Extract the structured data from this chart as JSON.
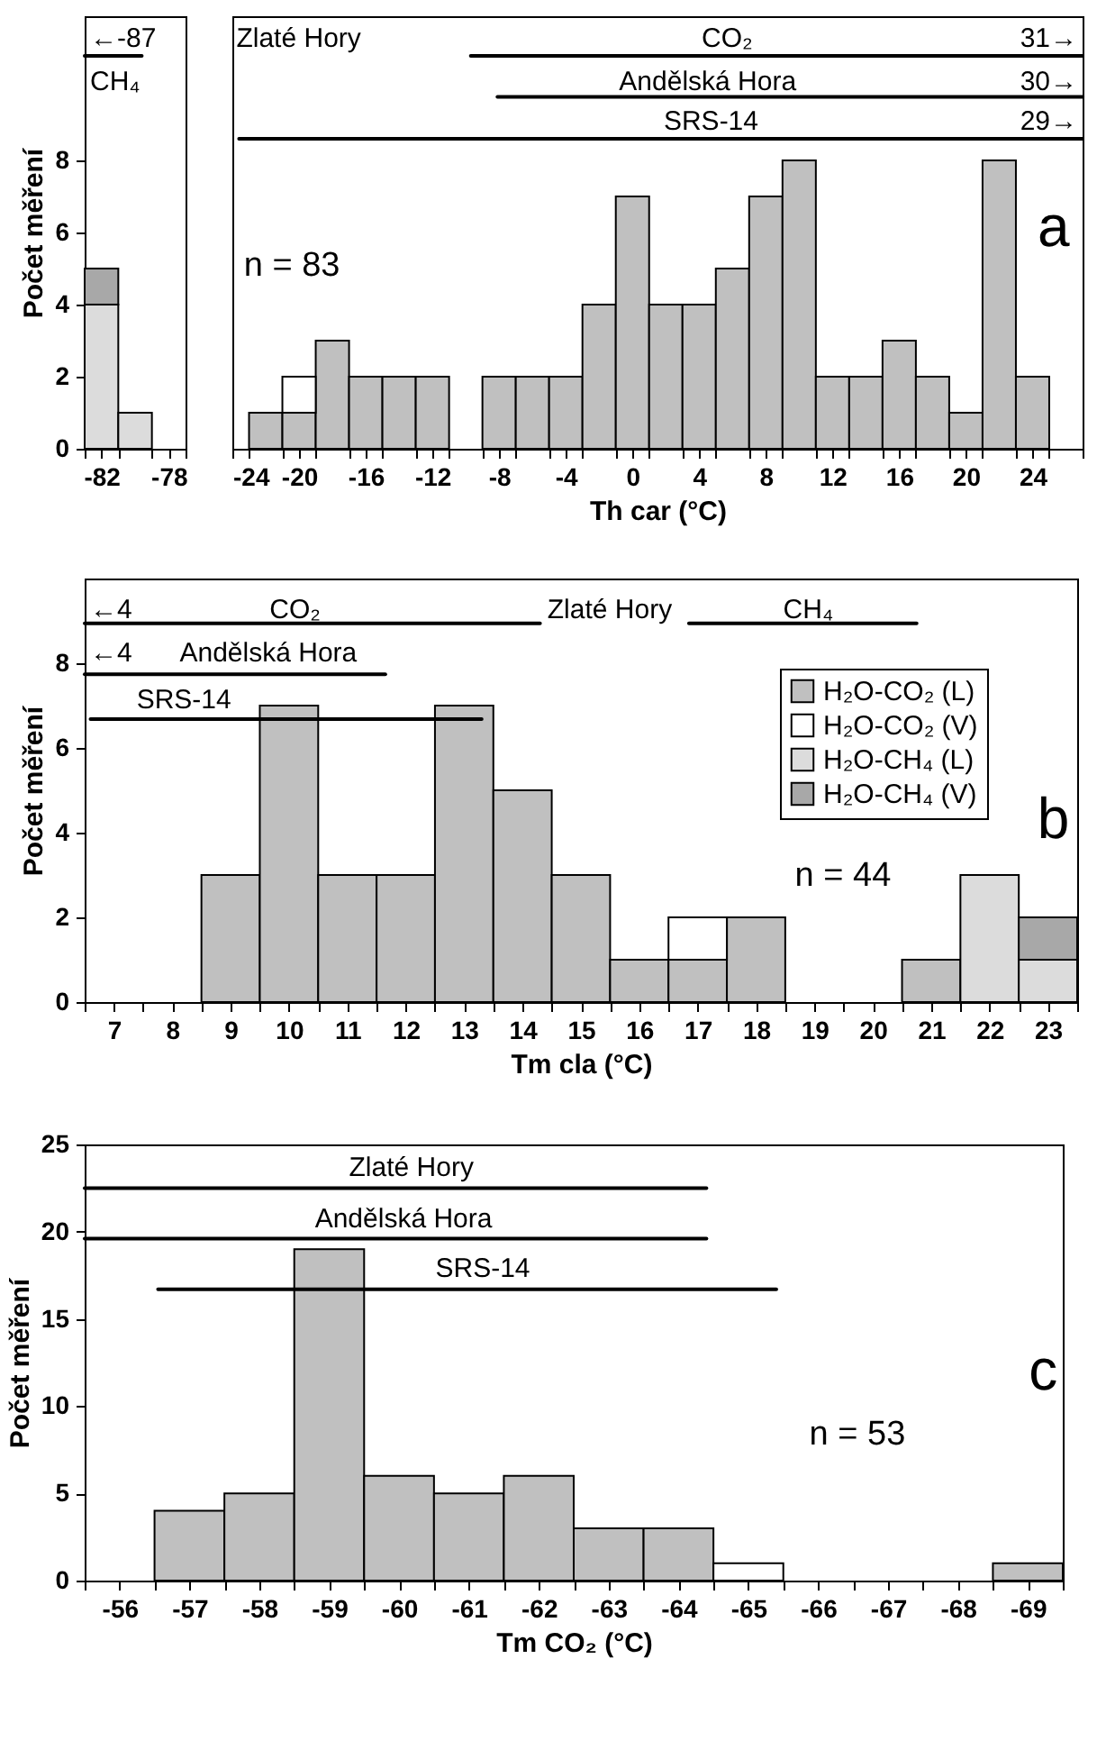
{
  "chart_data": [
    {
      "type": "bar",
      "stacked": true,
      "ylabel": "Počet měření",
      "xlim": [
        -83,
        -77
      ],
      "xticks": [
        {
          "value": -83,
          "label": null
        },
        -82,
        {
          "value": -81,
          "label": null
        },
        {
          "value": -79,
          "label": null
        },
        -78,
        {
          "value": -77,
          "label": null
        }
      ],
      "ylim": [
        0,
        12
      ],
      "yticks": [
        0,
        2,
        4,
        6,
        8
      ],
      "x": [
        -82,
        -80
      ],
      "series": [
        {
          "color": "#dcdcdc",
          "values": [
            4,
            1
          ]
        },
        {
          "color": "#a8a8a8",
          "values": [
            1,
            0
          ]
        },
        {
          "type": "line",
          "color": "#000000",
          "x": [
            -83,
            -79.6
          ],
          "values": [
            10.9,
            10.9
          ]
        }
      ],
      "annotations": [
        "←-87",
        "CH₄"
      ]
    },
    {
      "type": "bar",
      "stacked": true,
      "tick_labels": "x",
      "xlabel": "Th car (°C)",
      "xlim": [
        -24,
        27
      ],
      "xticks": [
        -24,
        {
          "value": -23,
          "label": null
        },
        {
          "value": -21,
          "label": null
        },
        -20,
        {
          "value": -19,
          "label": null
        },
        {
          "value": -17,
          "label": null
        },
        -16,
        {
          "value": -15,
          "label": null
        },
        {
          "value": -13,
          "label": null
        },
        -12,
        {
          "value": -11,
          "label": null
        },
        {
          "value": -9,
          "label": null
        },
        -8,
        {
          "value": -7,
          "label": null
        },
        {
          "value": -5,
          "label": null
        },
        -4,
        {
          "value": -3,
          "label": null
        },
        {
          "value": -1,
          "label": null
        },
        0,
        {
          "value": 1,
          "label": null
        },
        {
          "value": 3,
          "label": null
        },
        4,
        {
          "value": 5,
          "label": null
        },
        {
          "value": 7,
          "label": null
        },
        8,
        {
          "value": 9,
          "label": null
        },
        {
          "value": 11,
          "label": null
        },
        12,
        {
          "value": 13,
          "label": null
        },
        {
          "value": 15,
          "label": null
        },
        16,
        {
          "value": 17,
          "label": null
        },
        {
          "value": 19,
          "label": null
        },
        20,
        {
          "value": 21,
          "label": null
        },
        {
          "value": 23,
          "label": null
        },
        24,
        {
          "value": 25,
          "label": null
        },
        {
          "value": 27,
          "label": null
        }
      ],
      "ylim": [
        0,
        12
      ],
      "x": [
        -22,
        -20,
        -18,
        -16,
        -14,
        -12,
        -10,
        -8,
        -6,
        -4,
        -2,
        0,
        2,
        4,
        6,
        8,
        10,
        12,
        14,
        16,
        18,
        20,
        22,
        24
      ],
      "series": [
        {
          "color": "#c0c0c0",
          "values": [
            1,
            1,
            3,
            2,
            2,
            2,
            0,
            2,
            2,
            2,
            4,
            7,
            4,
            4,
            5,
            7,
            8,
            2,
            2,
            3,
            2,
            1,
            8,
            2
          ]
        },
        {
          "color": "#ffffff",
          "values": [
            0,
            1,
            0,
            0,
            0,
            0,
            0,
            0,
            0,
            0,
            0,
            0,
            0,
            0,
            0,
            0,
            0,
            0,
            0,
            0,
            0,
            0,
            0,
            0
          ]
        },
        {
          "type": "line",
          "color": "#000000",
          "x": [
            -9.7,
            27
          ],
          "values": [
            10.9,
            10.9
          ]
        },
        {
          "type": "line",
          "color": "#000000",
          "x": [
            -8.1,
            27
          ],
          "values": [
            9.76,
            9.76
          ]
        },
        {
          "type": "line",
          "color": "#000000",
          "x": [
            -23.6,
            27
          ],
          "values": [
            8.6,
            8.6
          ]
        }
      ],
      "annotations": [
        "Zlaté Hory",
        "CO₂",
        "31→",
        "Andělská Hora",
        "30→",
        "SRS-14",
        "29→",
        "n = 83",
        "a"
      ]
    },
    {
      "type": "bar",
      "stacked": true,
      "ylabel": "Počet měření",
      "xlabel": "Tm cla (°C)",
      "legend": "top right",
      "xlim": [
        6.5,
        23.5
      ],
      "xticks": [
        {
          "value": 6.5,
          "label": null
        },
        7,
        {
          "value": 7.5,
          "label": null
        },
        8,
        {
          "value": 8.5,
          "label": null
        },
        9,
        {
          "value": 9.5,
          "label": null
        },
        10,
        {
          "value": 10.5,
          "label": null
        },
        11,
        {
          "value": 11.5,
          "label": null
        },
        12,
        {
          "value": 12.5,
          "label": null
        },
        13,
        {
          "value": 13.5,
          "label": null
        },
        14,
        {
          "value": 14.5,
          "label": null
        },
        15,
        {
          "value": 15.5,
          "label": null
        },
        16,
        {
          "value": 16.5,
          "label": null
        },
        17,
        {
          "value": 17.5,
          "label": null
        },
        18,
        {
          "value": 18.5,
          "label": null
        },
        19,
        {
          "value": 19.5,
          "label": null
        },
        20,
        {
          "value": 20.5,
          "label": null
        },
        21,
        {
          "value": 21.5,
          "label": null
        },
        22,
        {
          "value": 22.5,
          "label": null
        },
        23,
        {
          "value": 23.5,
          "label": null
        }
      ],
      "ylim": [
        0,
        10
      ],
      "yticks": [
        0,
        2,
        4,
        6,
        8
      ],
      "x": [
        7,
        8,
        9,
        10,
        11,
        12,
        13,
        14,
        15,
        16,
        17,
        18,
        19,
        20,
        21,
        22,
        23
      ],
      "series": [
        {
          "name": "H₂O-CO₂ (L)",
          "color": "#c0c0c0",
          "values": [
            0,
            0,
            3,
            7,
            3,
            3,
            7,
            5,
            3,
            1,
            1,
            2,
            0,
            0,
            1,
            0,
            0
          ]
        },
        {
          "name": "H₂O-CO₂ (V)",
          "color": "#ffffff",
          "values": [
            0,
            0,
            0,
            0,
            0,
            0,
            0,
            0,
            0,
            0,
            1,
            0,
            0,
            0,
            0,
            0,
            0
          ]
        },
        {
          "name": "H₂O-CH₄ (L)",
          "color": "#dcdcdc",
          "values": [
            0,
            0,
            0,
            0,
            0,
            0,
            0,
            0,
            0,
            0,
            0,
            0,
            0,
            0,
            0,
            3,
            1
          ]
        },
        {
          "name": "H₂O-CH₄ (V)",
          "color": "#a8a8a8",
          "values": [
            0,
            0,
            0,
            0,
            0,
            0,
            0,
            0,
            0,
            0,
            0,
            0,
            0,
            0,
            0,
            0,
            1
          ]
        },
        {
          "type": "line",
          "color": "#000000",
          "x": [
            6.5,
            14.3
          ],
          "values": [
            8.94,
            8.94
          ]
        },
        {
          "type": "line",
          "color": "#000000",
          "x": [
            16.85,
            20.75
          ],
          "values": [
            8.94,
            8.94
          ]
        },
        {
          "type": "line",
          "color": "#000000",
          "x": [
            6.5,
            11.65
          ],
          "values": [
            7.74,
            7.74
          ]
        },
        {
          "type": "line",
          "color": "#000000",
          "x": [
            6.6,
            13.3
          ],
          "values": [
            6.68,
            6.68
          ]
        }
      ],
      "annotations": [
        "←4",
        "CO₂",
        "Zlaté Hory",
        "CH₄",
        "←4",
        "Andělská Hora",
        "SRS-14",
        "n = 44",
        "b"
      ]
    },
    {
      "type": "bar",
      "stacked": true,
      "ylabel": "Počet měření",
      "xlabel": "Tm CO₂ (°C)",
      "xlim": [
        -55.5,
        -69.5
      ],
      "xticks": [
        {
          "value": -55.5,
          "label": null
        },
        -56,
        {
          "value": -56.5,
          "label": null
        },
        -57,
        {
          "value": -57.5,
          "label": null
        },
        -58,
        {
          "value": -58.5,
          "label": null
        },
        -59,
        {
          "value": -59.5,
          "label": null
        },
        -60,
        {
          "value": -60.5,
          "label": null
        },
        -61,
        {
          "value": -61.5,
          "label": null
        },
        -62,
        {
          "value": -62.5,
          "label": null
        },
        -63,
        {
          "value": -63.5,
          "label": null
        },
        -64,
        {
          "value": -64.5,
          "label": null
        },
        -65,
        {
          "value": -65.5,
          "label": null
        },
        -66,
        {
          "value": -66.5,
          "label": null
        },
        -67,
        {
          "value": -67.5,
          "label": null
        },
        -68,
        {
          "value": -68.5,
          "label": null
        },
        -69,
        {
          "value": -69.5,
          "label": null
        }
      ],
      "ylim": [
        0,
        25
      ],
      "yticks": [
        0,
        5,
        10,
        15,
        20,
        25
      ],
      "x": [
        -57,
        -58,
        -59,
        -60,
        -61,
        -62,
        -63,
        -64,
        -65,
        -66,
        -67,
        -68,
        -69
      ],
      "series": [
        {
          "color": "#c0c0c0",
          "values": [
            4,
            5,
            19,
            6,
            5,
            6,
            3,
            3,
            0,
            0,
            0,
            0,
            1
          ]
        },
        {
          "color": "#ffffff",
          "values": [
            0,
            0,
            0,
            0,
            0,
            0,
            0,
            0,
            1,
            0,
            0,
            0,
            0
          ]
        },
        {
          "type": "line",
          "color": "#000000",
          "x": [
            -55.5,
            -64.4
          ],
          "values": [
            22.5,
            22.5
          ]
        },
        {
          "type": "line",
          "color": "#000000",
          "x": [
            -55.5,
            -64.4
          ],
          "values": [
            19.6,
            19.6
          ]
        },
        {
          "type": "line",
          "color": "#000000",
          "x": [
            -56.55,
            -65.4
          ],
          "values": [
            16.7,
            16.7
          ]
        }
      ],
      "annotations": [
        "Zlaté Hory",
        "Andělská Hora",
        "SRS-14",
        "n = 53",
        "c"
      ]
    }
  ]
}
